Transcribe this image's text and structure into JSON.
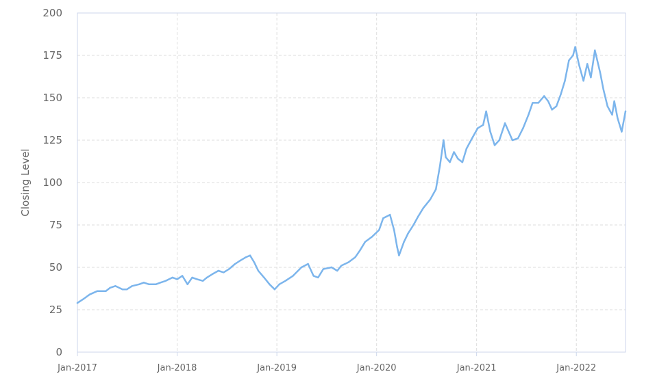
{
  "chart_data": {
    "type": "line",
    "title": "",
    "xlabel": "",
    "ylabel": "Closing Level",
    "ylim": [
      0,
      200
    ],
    "y_ticks": [
      0,
      25,
      50,
      75,
      100,
      125,
      150,
      175,
      200
    ],
    "xlim": [
      "2017-01-01",
      "2022-06-30"
    ],
    "x_ticks": [
      {
        "date": "2017-01-01",
        "label": "Jan-2017"
      },
      {
        "date": "2018-01-01",
        "label": "Jan-2018"
      },
      {
        "date": "2019-01-01",
        "label": "Jan-2019"
      },
      {
        "date": "2020-01-01",
        "label": "Jan-2020"
      },
      {
        "date": "2021-01-01",
        "label": "Jan-2021"
      },
      {
        "date": "2022-01-01",
        "label": "Jan-2022"
      }
    ],
    "grid": true,
    "legend": "none",
    "colors": {
      "line": "#7cb5ec",
      "grid": "#dddddd",
      "axis": "#ccd6eb",
      "text": "#666666"
    },
    "series": [
      {
        "x": [
          "2017-01-01",
          "2017-01-20",
          "2017-02-15",
          "2017-03-15",
          "2017-04-15",
          "2017-05-01",
          "2017-05-20",
          "2017-06-15",
          "2017-07-01",
          "2017-07-20",
          "2017-08-15",
          "2017-09-01",
          "2017-09-20",
          "2017-10-15",
          "2017-11-01",
          "2017-11-20",
          "2017-12-15",
          "2018-01-01",
          "2018-01-20",
          "2018-02-08",
          "2018-02-25",
          "2018-03-15",
          "2018-04-05",
          "2018-04-20",
          "2018-05-10",
          "2018-06-01",
          "2018-06-20",
          "2018-07-10",
          "2018-08-01",
          "2018-08-20",
          "2018-09-10",
          "2018-09-25",
          "2018-10-10",
          "2018-10-25",
          "2018-11-15",
          "2018-12-05",
          "2018-12-24",
          "2019-01-10",
          "2019-02-01",
          "2019-03-01",
          "2019-04-01",
          "2019-04-25",
          "2019-05-15",
          "2019-06-01",
          "2019-06-20",
          "2019-07-20",
          "2019-08-10",
          "2019-08-25",
          "2019-09-20",
          "2019-10-15",
          "2019-11-01",
          "2019-11-20",
          "2019-12-15",
          "2020-01-10",
          "2020-01-25",
          "2020-02-19",
          "2020-03-05",
          "2020-03-16",
          "2020-03-23",
          "2020-04-10",
          "2020-04-25",
          "2020-05-15",
          "2020-06-01",
          "2020-06-20",
          "2020-07-15",
          "2020-08-05",
          "2020-08-20",
          "2020-09-02",
          "2020-09-10",
          "2020-09-25",
          "2020-10-10",
          "2020-10-25",
          "2020-11-10",
          "2020-11-25",
          "2020-12-15",
          "2021-01-05",
          "2021-01-25",
          "2021-02-05",
          "2021-02-20",
          "2021-03-08",
          "2021-03-25",
          "2021-04-15",
          "2021-05-12",
          "2021-06-01",
          "2021-06-20",
          "2021-07-10",
          "2021-07-25",
          "2021-08-15",
          "2021-09-05",
          "2021-09-20",
          "2021-10-04",
          "2021-10-20",
          "2021-11-05",
          "2021-11-20",
          "2021-12-05",
          "2021-12-20",
          "2021-12-28",
          "2022-01-10",
          "2022-01-27",
          "2022-02-10",
          "2022-02-23",
          "2022-03-10",
          "2022-03-29",
          "2022-04-10",
          "2022-04-25",
          "2022-05-05",
          "2022-05-12",
          "2022-05-20",
          "2022-06-01",
          "2022-06-16",
          "2022-06-30"
        ],
        "values": [
          29,
          31,
          34,
          36,
          36,
          38,
          39,
          37,
          37,
          39,
          40,
          41,
          40,
          40,
          41,
          42,
          44,
          43,
          45,
          40,
          44,
          43,
          42,
          44,
          46,
          48,
          47,
          49,
          52,
          54,
          56,
          57,
          53,
          48,
          44,
          40,
          37,
          40,
          42,
          45,
          50,
          52,
          45,
          44,
          49,
          50,
          48,
          51,
          53,
          56,
          60,
          65,
          68,
          72,
          79,
          81,
          72,
          62,
          57,
          65,
          70,
          75,
          80,
          85,
          90,
          96,
          110,
          125,
          115,
          112,
          118,
          114,
          112,
          120,
          126,
          132,
          134,
          142,
          130,
          122,
          125,
          135,
          125,
          126,
          132,
          140,
          147,
          147,
          151,
          148,
          143,
          145,
          152,
          160,
          172,
          175,
          180,
          170,
          160,
          170,
          162,
          178,
          165,
          155,
          145,
          142,
          140,
          148,
          138,
          130,
          142
        ]
      }
    ]
  }
}
